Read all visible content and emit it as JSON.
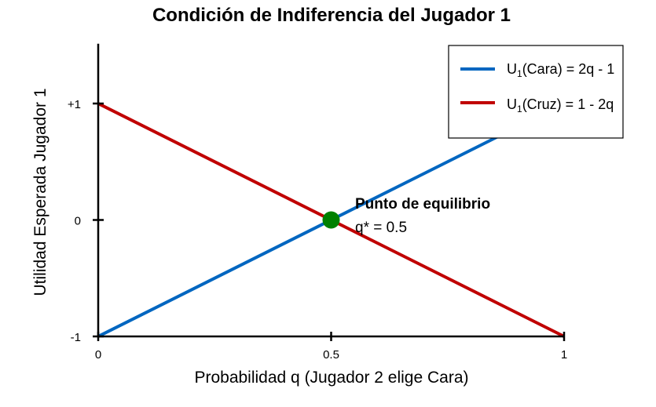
{
  "chart_data": {
    "type": "line",
    "title": "Condición de Indiferencia del Jugador 1",
    "xlabel": "Probabilidad q (Jugador 2 elige Cara)",
    "ylabel": "Utilidad Esperada Jugador 1",
    "xlim": [
      0,
      1
    ],
    "ylim": [
      -1,
      1.5
    ],
    "x_ticks": [
      {
        "value": 0,
        "label": "0"
      },
      {
        "value": 0.5,
        "label": "0.5"
      },
      {
        "value": 1,
        "label": "1"
      }
    ],
    "y_ticks": [
      {
        "value": -1,
        "label": "-1"
      },
      {
        "value": 0,
        "label": "0"
      },
      {
        "value": 1,
        "label": "+1"
      }
    ],
    "grid": false,
    "legend_position": "top-right",
    "series": [
      {
        "name_prefix": "U",
        "name_sub": "1",
        "name_suffix": "(Cara) = 2q - 1",
        "color": "#0066c0",
        "x": [
          0,
          1
        ],
        "y": [
          -1,
          1
        ]
      },
      {
        "name_prefix": "U",
        "name_sub": "1",
        "name_suffix": "(Cruz) = 1 - 2q",
        "color": "#c00000",
        "x": [
          0,
          1
        ],
        "y": [
          1,
          -1
        ]
      }
    ],
    "equilibrium_point": {
      "x": 0.5,
      "y": 0,
      "color": "#008000",
      "label": "Punto de equilibrio",
      "value_label": "q* = 0.5"
    }
  }
}
